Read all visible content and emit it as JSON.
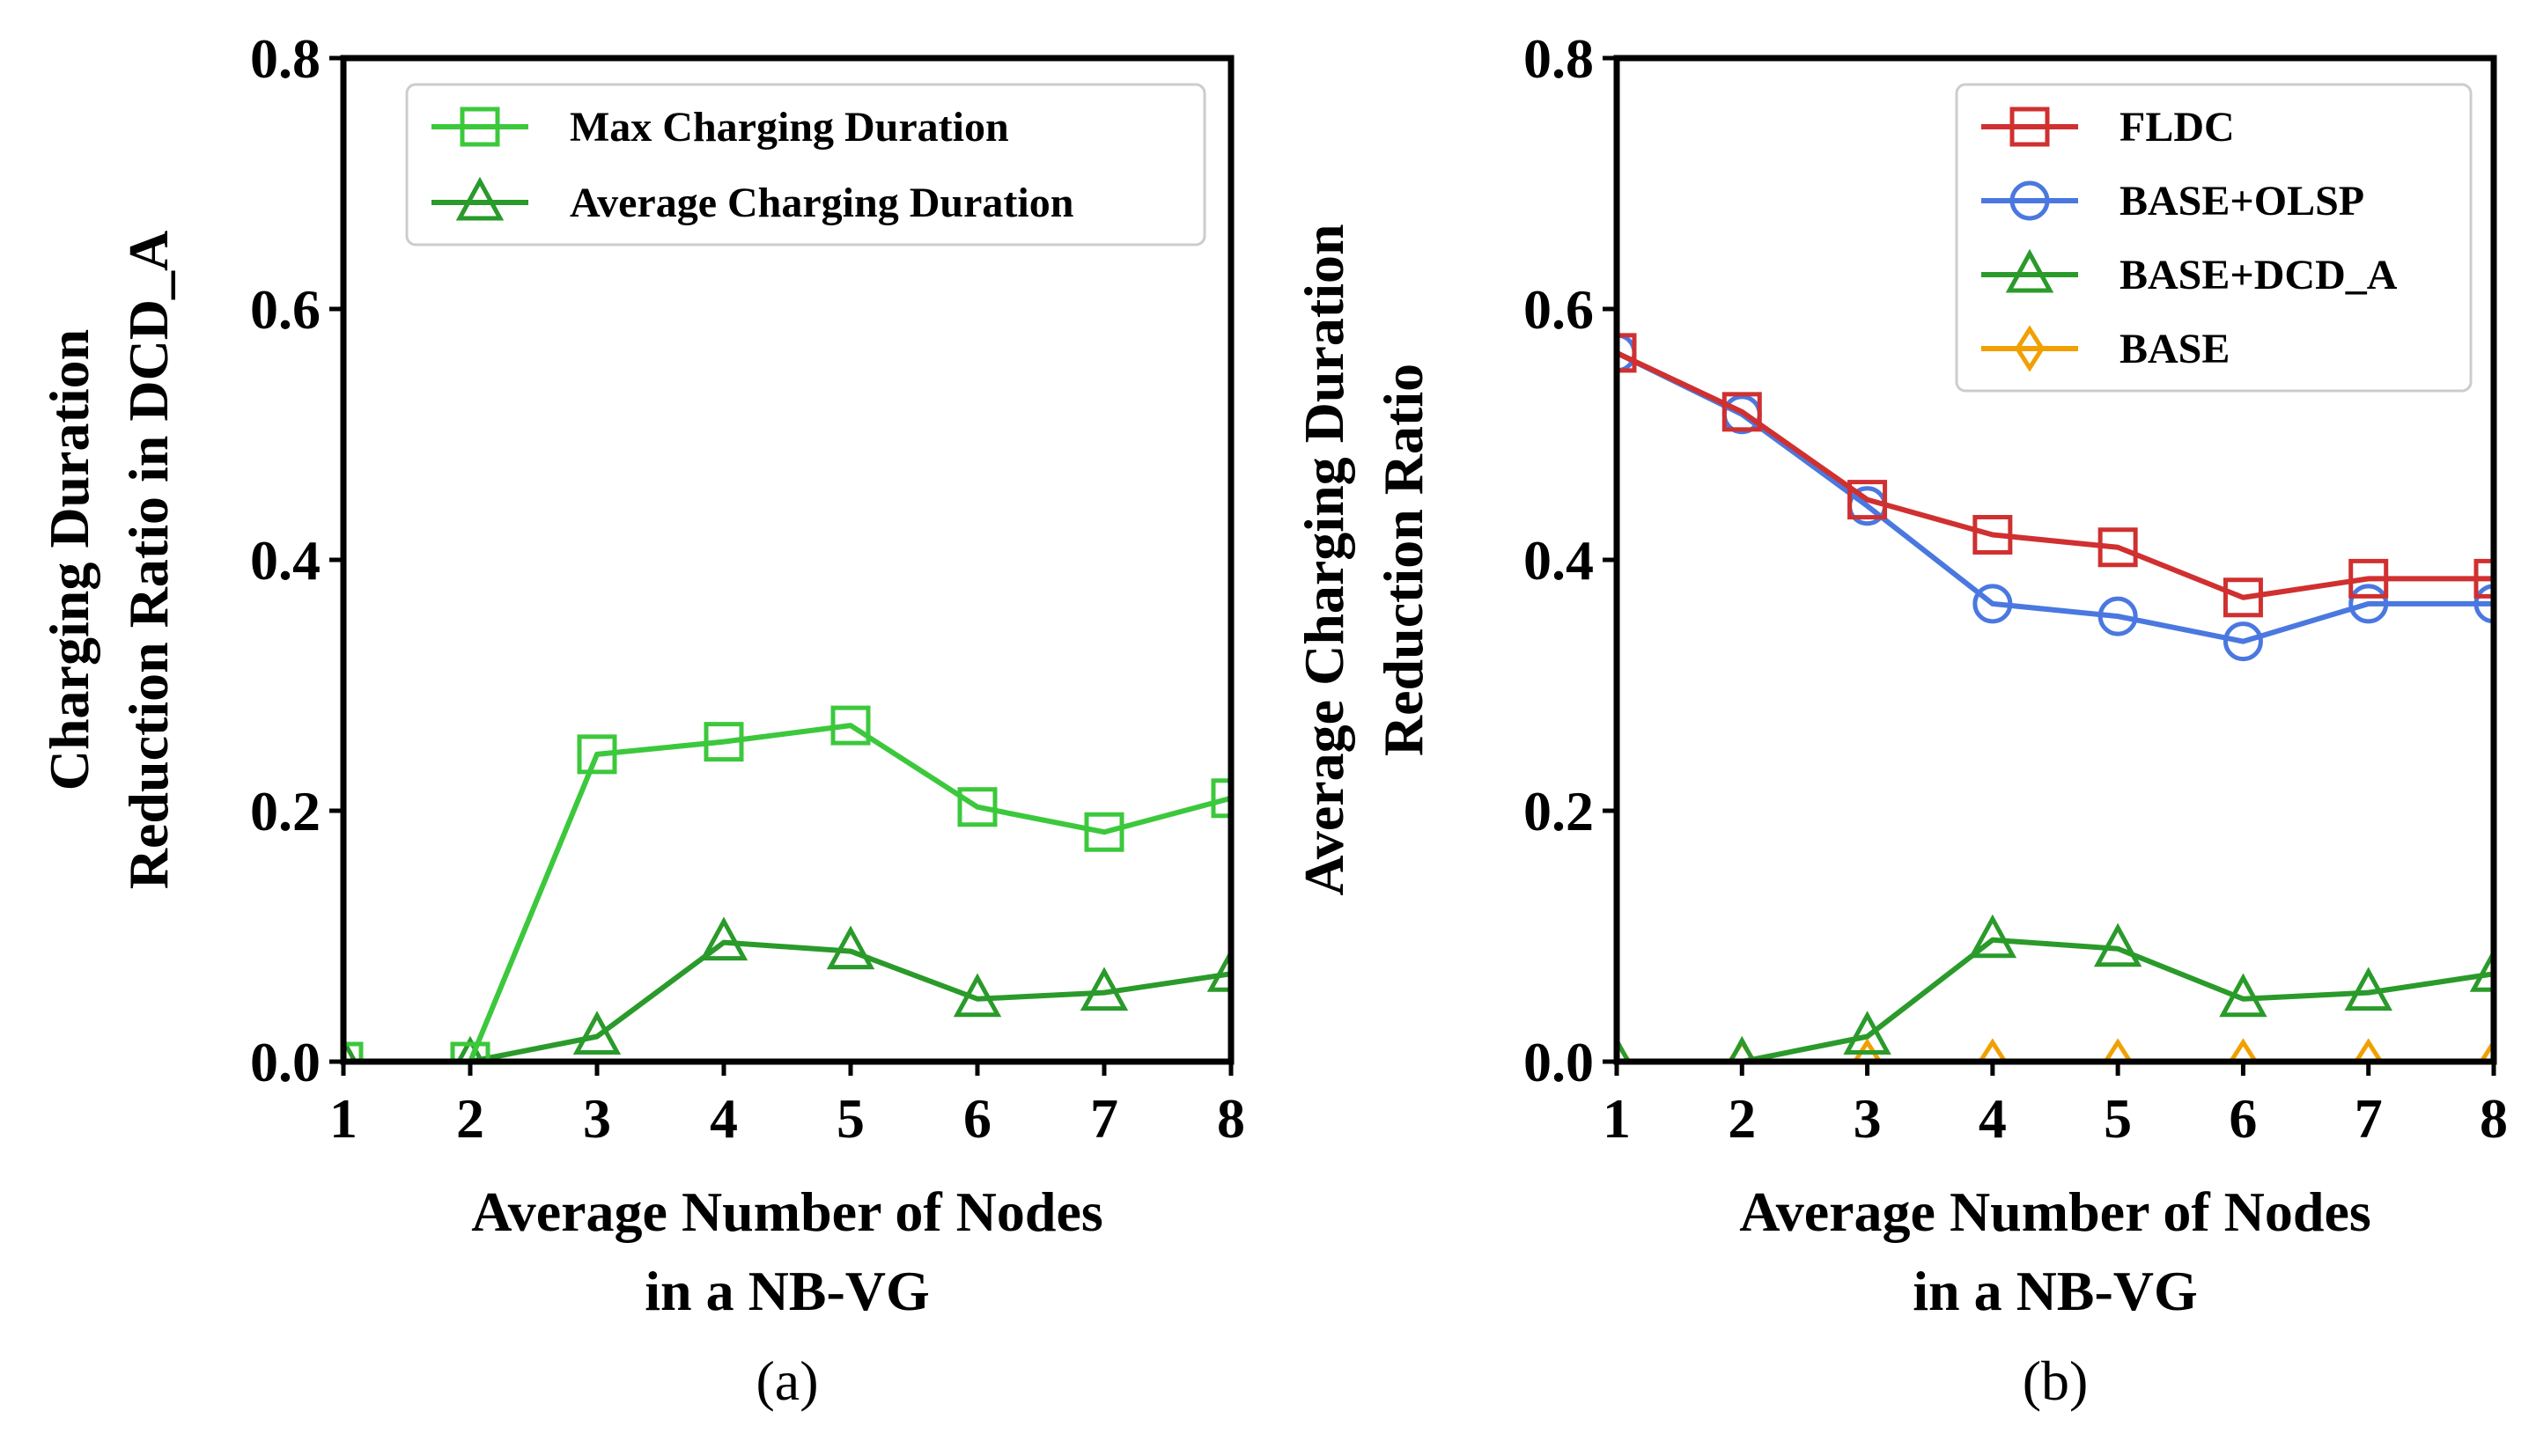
{
  "chart_data": [
    {
      "type": "line",
      "panel_label": "(a)",
      "xlabel_lines": [
        "Average Number of Nodes",
        "in a NB-VG"
      ],
      "ylabel_lines": [
        "Charging Duration",
        "Reduction Ratio in DCD_A"
      ],
      "x": [
        1,
        2,
        3,
        4,
        5,
        6,
        7,
        8
      ],
      "xlim": [
        1,
        8
      ],
      "ylim": [
        0,
        0.8
      ],
      "yticks": [
        "0.0",
        "0.2",
        "0.4",
        "0.6",
        "0.8"
      ],
      "xticks": [
        "1",
        "2",
        "3",
        "4",
        "5",
        "6",
        "7",
        "8"
      ],
      "legend_position": "top-right",
      "series": [
        {
          "name": "Max Charging Duration",
          "color": "#3cc83c",
          "marker": "square",
          "values": [
            0.0,
            0.0,
            0.245,
            0.255,
            0.268,
            0.203,
            0.183,
            0.21
          ]
        },
        {
          "name": "Average Charging Duration",
          "color": "#2a9a2a",
          "marker": "triangle",
          "values": [
            0.0,
            0.0,
            0.02,
            0.095,
            0.088,
            0.05,
            0.055,
            0.07
          ]
        }
      ]
    },
    {
      "type": "line",
      "panel_label": "(b)",
      "xlabel_lines": [
        "Average Number of Nodes",
        "in a NB-VG"
      ],
      "ylabel_lines": [
        "Average Charging Duration",
        "Reduction Ratio"
      ],
      "x": [
        1,
        2,
        3,
        4,
        5,
        6,
        7,
        8
      ],
      "xlim": [
        1,
        8
      ],
      "ylim": [
        0,
        0.8
      ],
      "yticks": [
        "0.0",
        "0.2",
        "0.4",
        "0.6",
        "0.8"
      ],
      "xticks": [
        "1",
        "2",
        "3",
        "4",
        "5",
        "6",
        "7",
        "8"
      ],
      "legend_position": "top-right",
      "series": [
        {
          "name": "FLDC",
          "color": "#d03030",
          "marker": "square",
          "values": [
            0.565,
            0.518,
            0.448,
            0.42,
            0.41,
            0.37,
            0.385,
            0.385
          ]
        },
        {
          "name": "BASE+OLSP",
          "color": "#4a78e0",
          "marker": "circle",
          "values": [
            0.565,
            0.516,
            0.443,
            0.365,
            0.355,
            0.335,
            0.365,
            0.365
          ]
        },
        {
          "name": "BASE+DCD_A",
          "color": "#2a9a2a",
          "marker": "triangle",
          "values": [
            0.0,
            0.0,
            0.02,
            0.097,
            0.09,
            0.05,
            0.055,
            0.07
          ]
        },
        {
          "name": "BASE",
          "color": "#f0a000",
          "marker": "diamond",
          "values": [
            0.0,
            0.0,
            0.0,
            0.0,
            0.0,
            0.0,
            0.0,
            0.0
          ]
        }
      ]
    }
  ]
}
